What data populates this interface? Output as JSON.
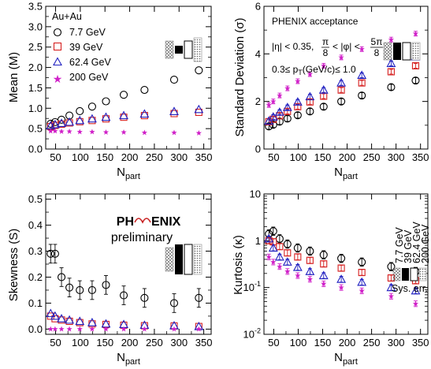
{
  "chart_data": [
    {
      "id": "mean",
      "type": "scatter",
      "ylabel": "Mean (M)",
      "xlabel_main": "N",
      "xlabel_sub": "part",
      "xlim": [
        30,
        365
      ],
      "ylim": [
        0,
        3.5
      ],
      "yscale": "linear",
      "xticks": [
        50,
        100,
        150,
        200,
        250,
        300,
        350
      ],
      "yticks": [
        0,
        0.5,
        1,
        1.5,
        2,
        2.5,
        3,
        3.5
      ],
      "ytick_labels": [
        "0.0",
        "0.5",
        "1.0",
        "1.5",
        "2.0",
        "2.5",
        "3.0",
        "3.5"
      ],
      "legend_title": "Au+Au",
      "legend_placement": "top-left",
      "series": [
        {
          "name": "7.7 GeV",
          "marker": "circle",
          "color": "#000000",
          "x": [
            40,
            49,
            62,
            78,
            99,
            124,
            152,
            188,
            230,
            290,
            340
          ],
          "y": [
            0.62,
            0.66,
            0.72,
            0.82,
            0.93,
            1.04,
            1.17,
            1.33,
            1.45,
            1.7,
            1.93
          ]
        },
        {
          "name": "39 GeV",
          "marker": "square",
          "color": "#d62020",
          "x": [
            40,
            49,
            62,
            78,
            99,
            124,
            152,
            188,
            230,
            290,
            340
          ],
          "y": [
            0.55,
            0.58,
            0.61,
            0.64,
            0.67,
            0.7,
            0.74,
            0.78,
            0.82,
            0.87,
            0.9
          ]
        },
        {
          "name": "62.4 GeV",
          "marker": "triangle",
          "color": "#2020c0",
          "x": [
            40,
            49,
            62,
            78,
            99,
            124,
            152,
            188,
            230,
            290,
            340
          ],
          "y": [
            0.57,
            0.6,
            0.63,
            0.66,
            0.7,
            0.74,
            0.78,
            0.82,
            0.86,
            0.92,
            0.97
          ]
        },
        {
          "name": "200 GeV",
          "marker": "star",
          "color": "#d020c8",
          "x": [
            40,
            49,
            62,
            78,
            99,
            124,
            152,
            188,
            230,
            290,
            340
          ],
          "y": [
            0.44,
            0.44,
            0.43,
            0.43,
            0.42,
            0.42,
            0.41,
            0.41,
            0.4,
            0.4,
            0.39
          ]
        }
      ]
    },
    {
      "id": "stddev",
      "type": "scatter",
      "ylabel": "Standard Deviation (σ)",
      "xlabel_main": "N",
      "xlabel_sub": "part",
      "xlim": [
        30,
        365
      ],
      "ylim": [
        0,
        6
      ],
      "yscale": "linear",
      "xticks": [
        50,
        100,
        150,
        200,
        250,
        300,
        350
      ],
      "yticks": [
        0,
        2,
        4,
        6
      ],
      "ytick_labels": [
        "0",
        "2",
        "4",
        "6"
      ],
      "annotation": {
        "title": "PHENIX acceptance",
        "eta": "|η| < 0.35,",
        "frac1_num": "π",
        "frac1_den": "8",
        "phi_mid": "< |φ| <",
        "frac2_num": "5π",
        "frac2_den": "8",
        "pt_pre": "0.3≤ p",
        "pt_sub": "T",
        "pt_post": "(GeV/c)≤ 1.0"
      },
      "series": [
        {
          "name": "7.7 GeV",
          "marker": "circle",
          "color": "#000000",
          "x": [
            40,
            49,
            62,
            78,
            99,
            124,
            152,
            188,
            230,
            290,
            340
          ],
          "y": [
            0.95,
            1.02,
            1.15,
            1.28,
            1.42,
            1.58,
            1.78,
            2.0,
            2.25,
            2.6,
            2.88
          ]
        },
        {
          "name": "39 GeV",
          "marker": "square",
          "color": "#d62020",
          "x": [
            40,
            49,
            62,
            78,
            99,
            124,
            152,
            188,
            230,
            290,
            340
          ],
          "y": [
            1.15,
            1.25,
            1.4,
            1.58,
            1.78,
            1.98,
            2.22,
            2.48,
            2.78,
            3.25,
            3.5
          ]
        },
        {
          "name": "62.4 GeV",
          "marker": "triangle",
          "color": "#2020c0",
          "x": [
            40,
            49,
            62,
            78,
            99,
            124,
            152,
            188,
            230,
            290,
            340
          ],
          "y": [
            1.18,
            1.35,
            1.55,
            1.75,
            1.98,
            2.2,
            2.48,
            2.78,
            3.1,
            3.6,
            3.88
          ]
        },
        {
          "name": "200 GeV",
          "marker": "star",
          "color": "#d020c8",
          "x": [
            40,
            49,
            62,
            78,
            99,
            124,
            152,
            188,
            230,
            290,
            340
          ],
          "y": [
            1.85,
            2.0,
            2.25,
            2.55,
            2.85,
            3.15,
            3.5,
            3.85,
            4.2,
            4.6,
            4.85
          ]
        }
      ]
    },
    {
      "id": "skewness",
      "type": "scatter",
      "ylabel": "Skewness (S)",
      "xlabel_main": "N",
      "xlabel_sub": "part",
      "xlim": [
        30,
        365
      ],
      "ylim": [
        -0.02,
        0.52
      ],
      "yscale": "linear",
      "xticks": [
        50,
        100,
        150,
        200,
        250,
        300,
        350
      ],
      "yticks": [
        0,
        0.1,
        0.2,
        0.3,
        0.4,
        0.5
      ],
      "ytick_labels": [
        "0.0",
        "0.1",
        "0.2",
        "0.3",
        "0.4",
        "0.5"
      ],
      "logo": {
        "left": "PH",
        "right": "ENIX",
        "sub": "preliminary"
      },
      "series": [
        {
          "name": "7.7 GeV",
          "marker": "circle",
          "color": "#000000",
          "x": [
            40,
            49,
            62,
            78,
            99,
            124,
            152,
            188,
            230,
            290,
            340
          ],
          "y": [
            0.29,
            0.29,
            0.2,
            0.16,
            0.15,
            0.15,
            0.17,
            0.13,
            0.12,
            0.1,
            0.12
          ]
        },
        {
          "name": "39 GeV",
          "marker": "square",
          "color": "#d62020",
          "x": [
            40,
            49,
            62,
            78,
            99,
            124,
            152,
            188,
            230,
            290,
            340
          ],
          "y": [
            0.05,
            0.04,
            0.035,
            0.03,
            0.025,
            0.02,
            0.018,
            0.015,
            0.013,
            0.012,
            0.01
          ]
        },
        {
          "name": "62.4 GeV",
          "marker": "triangle",
          "color": "#2020c0",
          "x": [
            40,
            49,
            62,
            78,
            99,
            124,
            152,
            188,
            230,
            290,
            340
          ],
          "y": [
            0.06,
            0.05,
            0.04,
            0.035,
            0.03,
            0.025,
            0.02,
            0.018,
            0.015,
            0.013,
            0.01
          ]
        },
        {
          "name": "200 GeV",
          "marker": "star",
          "color": "#d020c8",
          "x": [
            40,
            49,
            62,
            78,
            99,
            124,
            152,
            188,
            230,
            290,
            340
          ],
          "y": [
            0.0,
            0.0,
            0.0,
            0.0,
            0.0,
            0.0,
            0.0,
            0.0,
            0.0,
            0.0,
            0.0
          ]
        }
      ]
    },
    {
      "id": "kurtosis",
      "type": "scatter",
      "ylabel": "Kurtosis (κ)",
      "xlabel_main": "N",
      "xlabel_sub": "part",
      "xlim": [
        30,
        365
      ],
      "ylim": [
        0.01,
        10
      ],
      "yscale": "log",
      "xticks": [
        50,
        100,
        150,
        200,
        250,
        300,
        350
      ],
      "yticks": [
        0.01,
        0.1,
        1,
        10
      ],
      "ytick_labels": [
        {
          "base": "10",
          "exp": "-2"
        },
        {
          "base": "10",
          "exp": "-1"
        },
        {
          "base": "1",
          "exp": ""
        },
        {
          "base": "10",
          "exp": ""
        }
      ],
      "legend_vertical": [
        "7.7 GeV",
        "39 GeV",
        "62.4 GeV",
        "200 GeV"
      ],
      "sys_label": "Sys. err.",
      "series": [
        {
          "name": "7.7 GeV",
          "marker": "circle",
          "color": "#000000",
          "x": [
            40,
            49,
            62,
            78,
            99,
            124,
            152,
            188,
            230,
            290,
            340
          ],
          "y": [
            1.4,
            1.6,
            1.1,
            0.85,
            0.7,
            0.6,
            0.5,
            0.42,
            0.35,
            0.28,
            0.22
          ]
        },
        {
          "name": "39 GeV",
          "marker": "square",
          "color": "#d62020",
          "x": [
            40,
            49,
            62,
            78,
            99,
            124,
            152,
            188,
            230,
            290,
            340
          ],
          "y": [
            1.0,
            0.95,
            0.75,
            0.55,
            0.45,
            0.38,
            0.32,
            0.26,
            0.21,
            0.16,
            0.14
          ]
        },
        {
          "name": "62.4 GeV",
          "marker": "triangle",
          "color": "#2020c0",
          "x": [
            40,
            49,
            62,
            78,
            99,
            124,
            152,
            188,
            230,
            290,
            340
          ],
          "y": [
            1.1,
            0.7,
            0.45,
            0.35,
            0.27,
            0.22,
            0.18,
            0.15,
            0.13,
            0.1,
            0.085
          ]
        },
        {
          "name": "200 GeV",
          "marker": "star",
          "color": "#d020c8",
          "x": [
            40,
            49,
            62,
            78,
            99,
            124,
            152,
            188,
            230,
            290,
            340
          ],
          "y": [
            0.45,
            0.35,
            0.28,
            0.22,
            0.18,
            0.15,
            0.12,
            0.1,
            0.085,
            0.065,
            0.045
          ]
        }
      ]
    }
  ]
}
